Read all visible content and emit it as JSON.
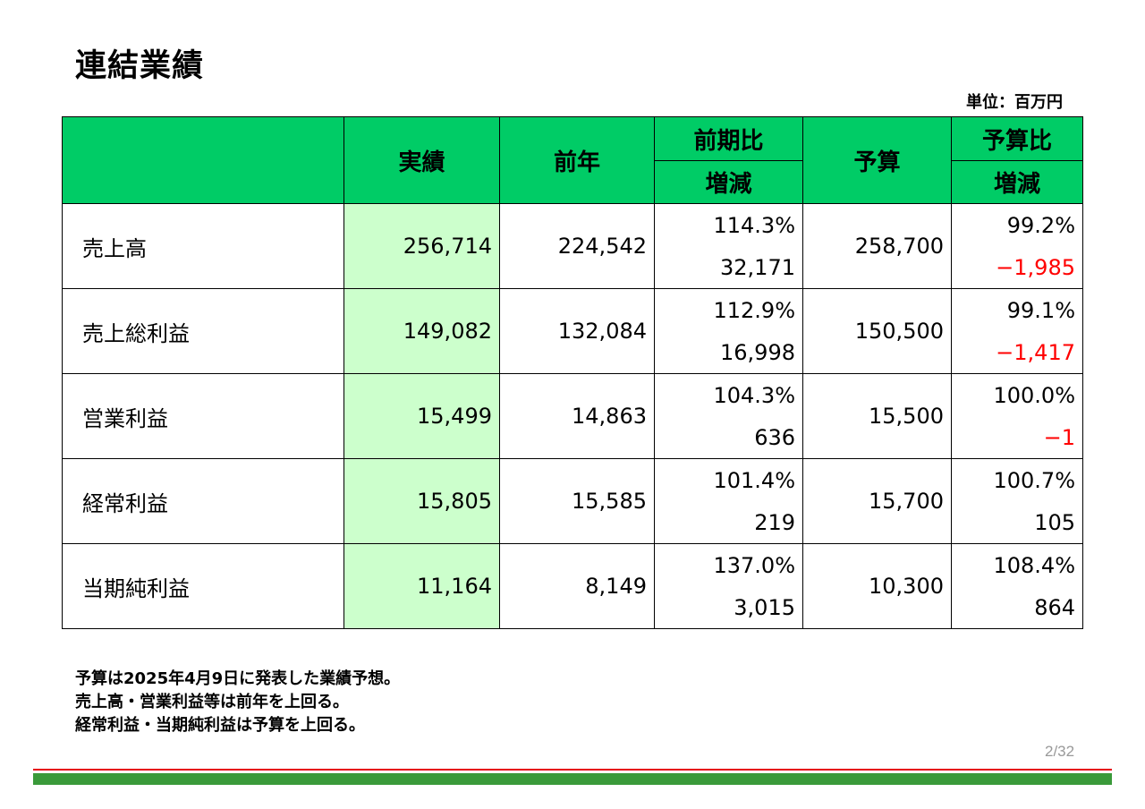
{
  "slide": {
    "title": "連結業績",
    "unit": "単位：百万円",
    "page": "2/32"
  },
  "colors": {
    "header_bg": "#00cc66",
    "actual_col_bg": "#ccffcc",
    "negative": "#ff0000",
    "footer_red": "#e60012",
    "footer_green": "#3a9a3a"
  },
  "table": {
    "headers": {
      "actual": "実績",
      "prev_year": "前年",
      "yoy": "前期比",
      "yoy_sub": "増減",
      "budget": "予算",
      "vs_budget": "予算比",
      "vs_budget_sub": "増減"
    },
    "rows": [
      {
        "label": "売上高",
        "actual": "256,714",
        "prev": "224,542",
        "yoy_pct": "114.3%",
        "yoy_diff": "32,171",
        "budget": "258,700",
        "bud_pct": "99.2%",
        "bud_diff": "−1,985"
      },
      {
        "label": "売上総利益",
        "actual": "149,082",
        "prev": "132,084",
        "yoy_pct": "112.9%",
        "yoy_diff": "16,998",
        "budget": "150,500",
        "bud_pct": "99.1%",
        "bud_diff": "−1,417"
      },
      {
        "label": "営業利益",
        "actual": "15,499",
        "prev": "14,863",
        "yoy_pct": "104.3%",
        "yoy_diff": "636",
        "budget": "15,500",
        "bud_pct": "100.0%",
        "bud_diff": "−1"
      },
      {
        "label": "経常利益",
        "actual": "15,805",
        "prev": "15,585",
        "yoy_pct": "101.4%",
        "yoy_diff": "219",
        "budget": "15,700",
        "bud_pct": "100.7%",
        "bud_diff": "105"
      },
      {
        "label": "当期純利益",
        "actual": "11,164",
        "prev": "8,149",
        "yoy_pct": "137.0%",
        "yoy_diff": "3,015",
        "budget": "10,300",
        "bud_pct": "108.4%",
        "bud_diff": "864"
      }
    ]
  },
  "notes": [
    "予算は2025年4月9日に発表した業績予想。",
    "売上高・営業利益等は前年を上回る。",
    "経常利益・当期純利益は予算を上回る。"
  ]
}
